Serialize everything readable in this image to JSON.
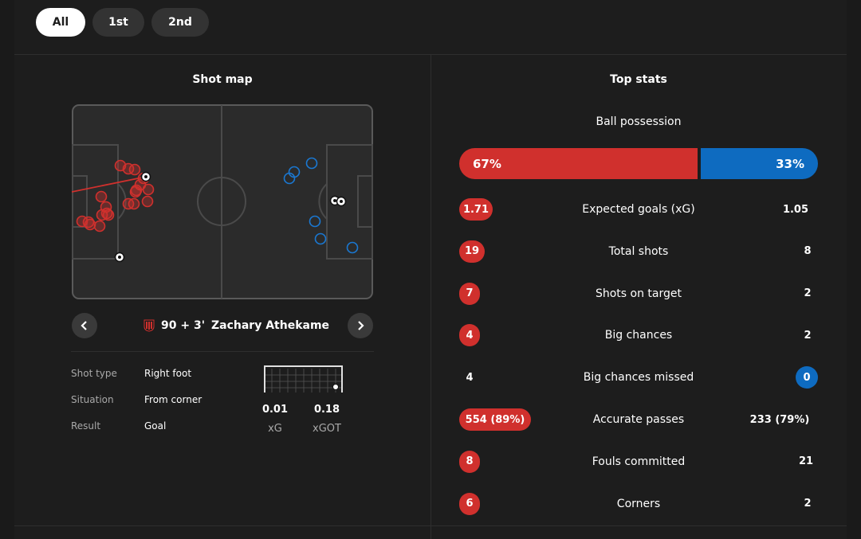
{
  "tabs": [
    {
      "label": "All",
      "active": true
    },
    {
      "label": "1st",
      "active": false
    },
    {
      "label": "2nd",
      "active": false
    }
  ],
  "shot_map": {
    "title": "Shot map",
    "selected_shot": {
      "minute": "90 + 3'",
      "player": "Zachary Athekame",
      "team_crest": "ac-milan-crest"
    },
    "details": [
      {
        "key": "Shot type",
        "value": "Right foot"
      },
      {
        "key": "Situation",
        "value": "From corner"
      },
      {
        "key": "Result",
        "value": "Goal"
      }
    ],
    "xg": {
      "value": "0.01",
      "label": "xG"
    },
    "xgot": {
      "value": "0.18",
      "label": "xGOT"
    },
    "colors": {
      "home": "#d0302d",
      "away": "#1a78d2"
    }
  },
  "top_stats": {
    "title": "Top stats",
    "possession": {
      "label": "Ball possession",
      "home": "67%",
      "away": "33%",
      "home_value": 67,
      "away_value": 33
    },
    "rows": [
      {
        "name": "Expected goals (xG)",
        "home": "1.71",
        "away": "1.05",
        "highlight": "home"
      },
      {
        "name": "Total shots",
        "home": "19",
        "away": "8",
        "highlight": "home"
      },
      {
        "name": "Shots on target",
        "home": "7",
        "away": "2",
        "highlight": "home"
      },
      {
        "name": "Big chances",
        "home": "4",
        "away": "2",
        "highlight": "home"
      },
      {
        "name": "Big chances missed",
        "home": "4",
        "away": "0",
        "highlight": "away"
      },
      {
        "name": "Accurate passes",
        "home": "554 (89%)",
        "away": "233 (79%)",
        "highlight": "home"
      },
      {
        "name": "Fouls committed",
        "home": "8",
        "away": "21",
        "highlight": "home"
      },
      {
        "name": "Corners",
        "home": "6",
        "away": "2",
        "highlight": "home"
      }
    ]
  }
}
